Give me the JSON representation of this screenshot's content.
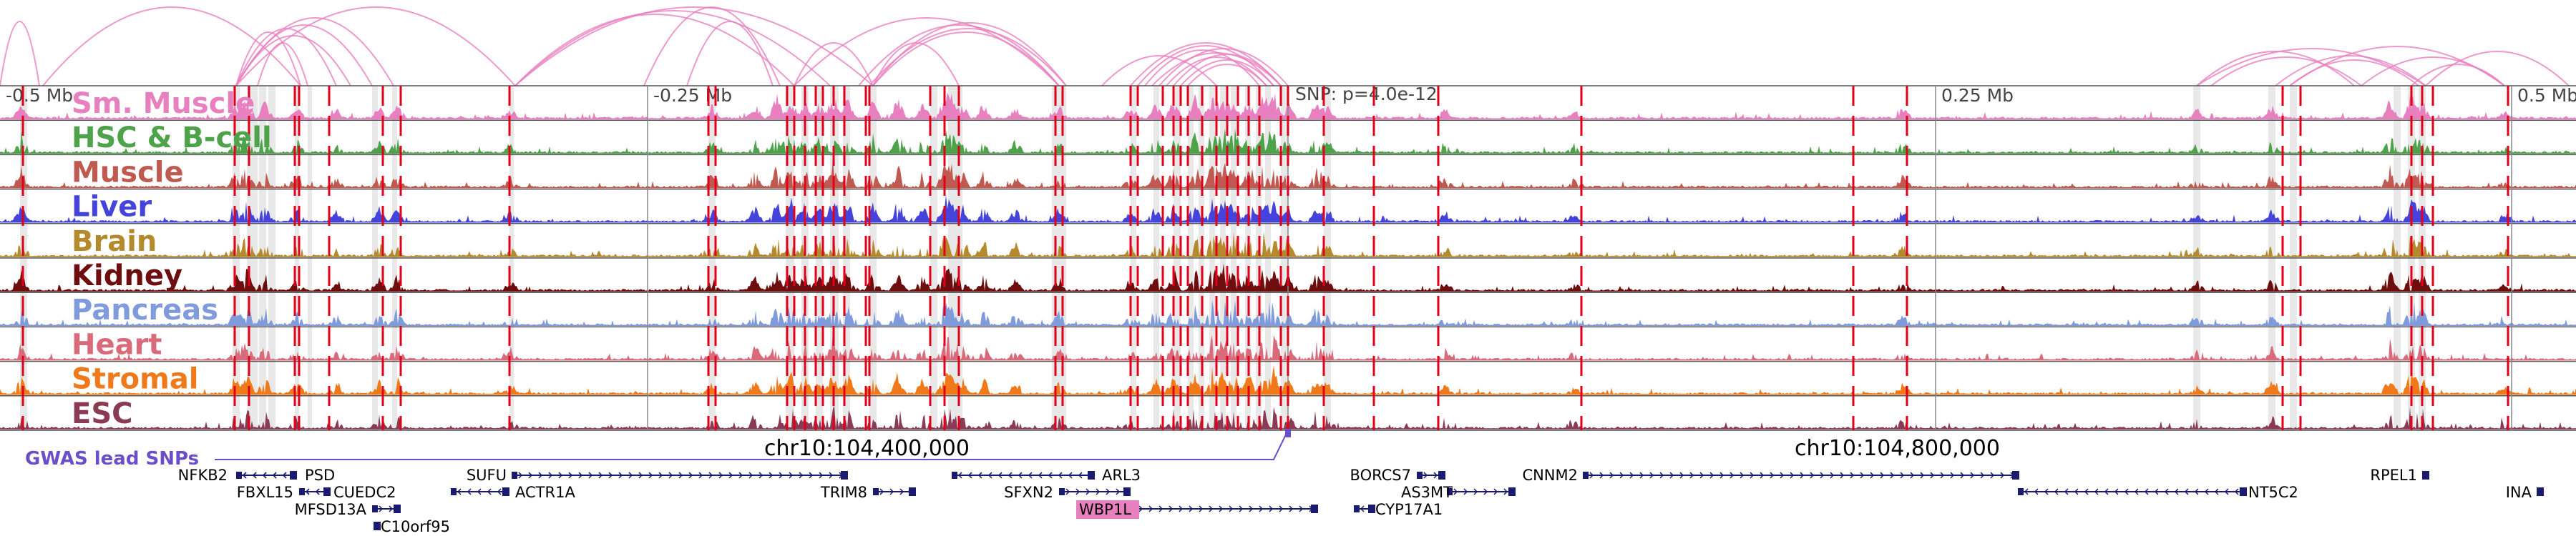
{
  "tracks": [
    {
      "name": "Sm. Muscle",
      "color": "#e87fbf"
    },
    {
      "name": "HSC & B-cell",
      "color": "#4ea24a"
    },
    {
      "name": "Muscle",
      "color": "#c05a50"
    },
    {
      "name": "Liver",
      "color": "#4444dd"
    },
    {
      "name": "Brain",
      "color": "#b58a2c"
    },
    {
      "name": "Kidney",
      "color": "#6e0d0d"
    },
    {
      "name": "Pancreas",
      "color": "#7f9bdc"
    },
    {
      "name": "Heart",
      "color": "#d96a7a"
    },
    {
      "name": "Stromal",
      "color": "#f07a1a"
    },
    {
      "name": "ESC",
      "color": "#8a3a52"
    }
  ],
  "scale_labels": [
    "-0.5 Mb",
    "-0.25 Mb",
    "0.25 Mb",
    "0.5 Mb"
  ],
  "snp_label": "SNP: p=4.0e-12",
  "gwas_label": "GWAS lead SNPs",
  "coordinates": [
    "chr10:104,400,000",
    "chr10:104,800,000"
  ],
  "genes": [
    "NFKB2",
    "PSD",
    "FBXL15",
    "CUEDC2",
    "MFSD13A",
    "C10orf95",
    "SUFU",
    "ACTR1A",
    "TRIM8",
    "ARL3",
    "SFXN2",
    "WBP1L",
    "BORCS7",
    "AS3MT",
    "CYP17A1",
    "CNNM2",
    "NT5C2",
    "RPEL1",
    "INA"
  ],
  "highlighted_gene": "WBP1L",
  "colors": {
    "loop_arc": "#e87fbf",
    "variant_line": "#e0001a",
    "highlight_band": "#d9d9d9",
    "gene_model": "#1a1a6e",
    "gwas": "#6a4fc8",
    "gene_highlight": "#e87fbf"
  }
}
